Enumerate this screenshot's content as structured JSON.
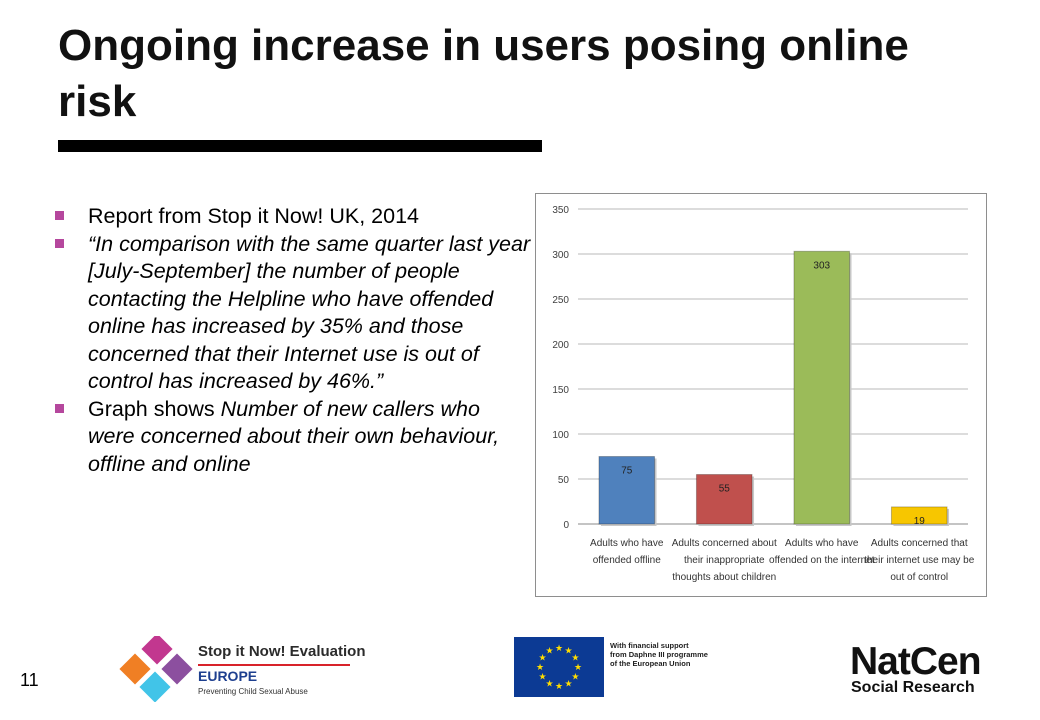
{
  "slide": {
    "title": "Ongoing increase in users  posing online risk",
    "page_number": "11"
  },
  "bullets": [
    {
      "segments": [
        {
          "text": "Report from Stop it Now! UK, 2014",
          "italic": false
        }
      ]
    },
    {
      "segments": [
        {
          "text": "“In comparison with the same quarter last year [July-September] the number of people contacting the Helpline who have offended online has increased by 35% and those concerned that their Internet use is out of control has increased by 46%.”",
          "italic": true
        }
      ]
    },
    {
      "segments": [
        {
          "text": "Graph shows ",
          "italic": false
        },
        {
          "text": "Number of new callers who were concerned about their own behaviour, offline and online",
          "italic": true
        }
      ]
    }
  ],
  "chart_data": {
    "type": "bar",
    "categories": [
      [
        "Adults who have",
        "offended offline"
      ],
      [
        "Adults concerned about",
        "their inappropriate",
        "thoughts about children"
      ],
      [
        "Adults who have",
        "offended on the internet"
      ],
      [
        "Adults concerned that",
        "their internet use may be",
        "out of control"
      ]
    ],
    "values": [
      75,
      55,
      303,
      19
    ],
    "data_labels": [
      "75",
      "55",
      "303",
      "19"
    ],
    "bar_colors": [
      "#4f81bd",
      "#c0504d",
      "#9bbb59",
      "#f7c600"
    ],
    "ylim": [
      0,
      350
    ],
    "yticks": [
      0,
      50,
      100,
      150,
      200,
      250,
      300,
      350
    ],
    "grid": true,
    "title": "",
    "xlabel": "",
    "ylabel": ""
  },
  "logos": {
    "stop_it_now": {
      "line1": "Stop it Now! Evaluation",
      "line2": "EUROPE",
      "line3": "Preventing Child Sexual Abuse"
    },
    "eu": {
      "lines": [
        "With financial support",
        "from Daphne III programme",
        "of the European Union"
      ]
    },
    "natcen": {
      "line1": "NatCen",
      "line2": "Social Research"
    }
  }
}
